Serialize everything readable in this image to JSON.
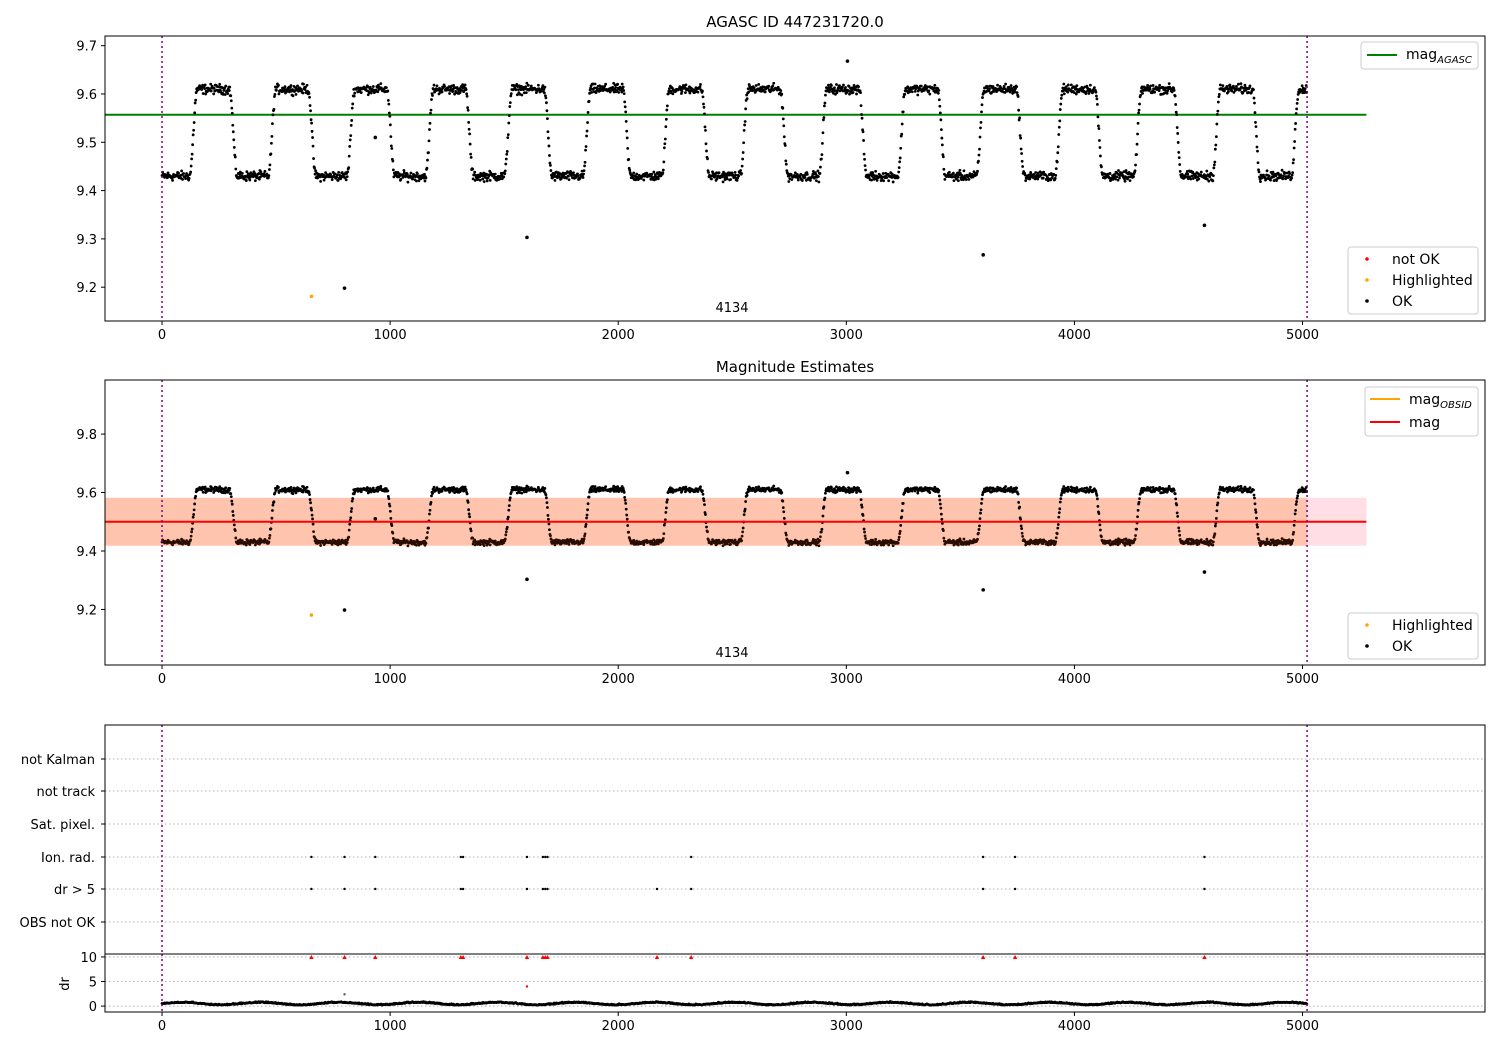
{
  "chart_data": [
    {
      "type": "scatter",
      "title": "AGASC ID 447231720.0",
      "xlim": [
        -250,
        5800
      ],
      "ylim": [
        9.13,
        9.72
      ],
      "xticks": [
        0,
        1000,
        2000,
        3000,
        4000,
        5000
      ],
      "xtick_labels": [
        "0",
        "1000",
        "2000",
        "3000",
        "4000",
        "5000"
      ],
      "yticks": [
        9.2,
        9.3,
        9.4,
        9.5,
        9.6,
        9.7
      ],
      "ytick_labels": [
        "9.2",
        "9.3",
        "9.4",
        "9.5",
        "9.6",
        "9.7"
      ],
      "vlines": [
        0,
        5020
      ],
      "hline": {
        "name": "mag",
        "subscript": "AGASC",
        "y": 9.557,
        "x_end": 5280
      },
      "obsid_label": {
        "text": "4134",
        "x": 2500
      },
      "light_curve": {
        "x_start": 0,
        "x_end": 5020,
        "low": 9.43,
        "high": 9.61,
        "first_peak": 225,
        "period": 345
      },
      "outliers": [
        {
          "x": 655,
          "y": 9.181,
          "class": "Highlighted"
        },
        {
          "x": 800,
          "y": 9.198
        },
        {
          "x": 935,
          "y": 9.51
        },
        {
          "x": 1600,
          "y": 9.303
        },
        {
          "x": 3600,
          "y": 9.267
        },
        {
          "x": 4570,
          "y": 9.328
        },
        {
          "x": 3005,
          "y": 9.668
        }
      ],
      "legend_lines": [
        {
          "name": "mag",
          "subscript": "AGASC",
          "color": "#008000"
        }
      ],
      "legend_points": [
        {
          "name": "not OK",
          "color": "#ff0000"
        },
        {
          "name": "Highlighted",
          "color": "#ffa500"
        },
        {
          "name": "OK",
          "color": "#000000"
        }
      ]
    },
    {
      "type": "scatter",
      "title": "Magnitude Estimates",
      "xlim": [
        -250,
        5800
      ],
      "ylim": [
        9.01,
        9.985
      ],
      "xticks": [
        0,
        1000,
        2000,
        3000,
        4000,
        5000
      ],
      "xtick_labels": [
        "0",
        "1000",
        "2000",
        "3000",
        "4000",
        "5000"
      ],
      "yticks": [
        9.2,
        9.4,
        9.6,
        9.8
      ],
      "ytick_labels": [
        "9.2",
        "9.4",
        "9.6",
        "9.8"
      ],
      "vlines": [
        0,
        5020
      ],
      "bands": [
        {
          "y0": 9.418,
          "y1": 9.582,
          "x0": -250,
          "x1": 5280,
          "color": "#ffc0cb"
        },
        {
          "y0": 9.418,
          "y1": 9.582,
          "x0": -250,
          "x1": 5020,
          "color": "#ffa36b"
        }
      ],
      "mag_line": {
        "y": 9.5,
        "x_end": 5280,
        "color": "#ff0000"
      },
      "obsid_label": {
        "text": "4134",
        "x": 2500
      },
      "legend_lines": [
        {
          "name": "mag",
          "subscript": "OBSID",
          "color": "#ffa500"
        },
        {
          "name": "mag",
          "subscript": "",
          "color": "#ff0000"
        }
      ],
      "legend_points": [
        {
          "name": "Highlighted",
          "color": "#ffa500"
        },
        {
          "name": "OK",
          "color": "#000000"
        }
      ]
    },
    {
      "type": "scatter",
      "title": "",
      "xlim": [
        -250,
        5800
      ],
      "flag_labels": [
        "not Kalman",
        "not track",
        "Sat. pixel.",
        "Ion. rad.",
        "dr > 5",
        "OBS not OK"
      ],
      "flag_points": {
        "Ion. rad.": [
          655,
          800,
          935,
          1310,
          1320,
          1600,
          1670,
          1680,
          1690,
          2320,
          3600,
          3740,
          4570
        ],
        "dr > 5": [
          655,
          800,
          935,
          1310,
          1320,
          1600,
          1670,
          1680,
          1690,
          2170,
          2320,
          3600,
          3740,
          4570
        ]
      },
      "dr": {
        "ylabel": "dr",
        "ylim": [
          -1.2,
          10.6
        ],
        "yticks": [
          0,
          5,
          10
        ],
        "ytick_labels": [
          "0",
          "5",
          "10"
        ],
        "clipped_at": 10,
        "clipped_x": [
          655,
          800,
          935,
          1310,
          1320,
          1600,
          1670,
          1680,
          1690,
          2170,
          2320,
          3600,
          3740,
          4570
        ],
        "red_points": [
          {
            "x": 1600,
            "y": 4.0
          }
        ],
        "gray_points": [
          {
            "x": 800,
            "y": 2.4
          }
        ]
      },
      "xticks": [
        0,
        1000,
        2000,
        3000,
        4000,
        5000
      ],
      "xtick_labels": [
        "0",
        "1000",
        "2000",
        "3000",
        "4000",
        "5000"
      ]
    }
  ]
}
